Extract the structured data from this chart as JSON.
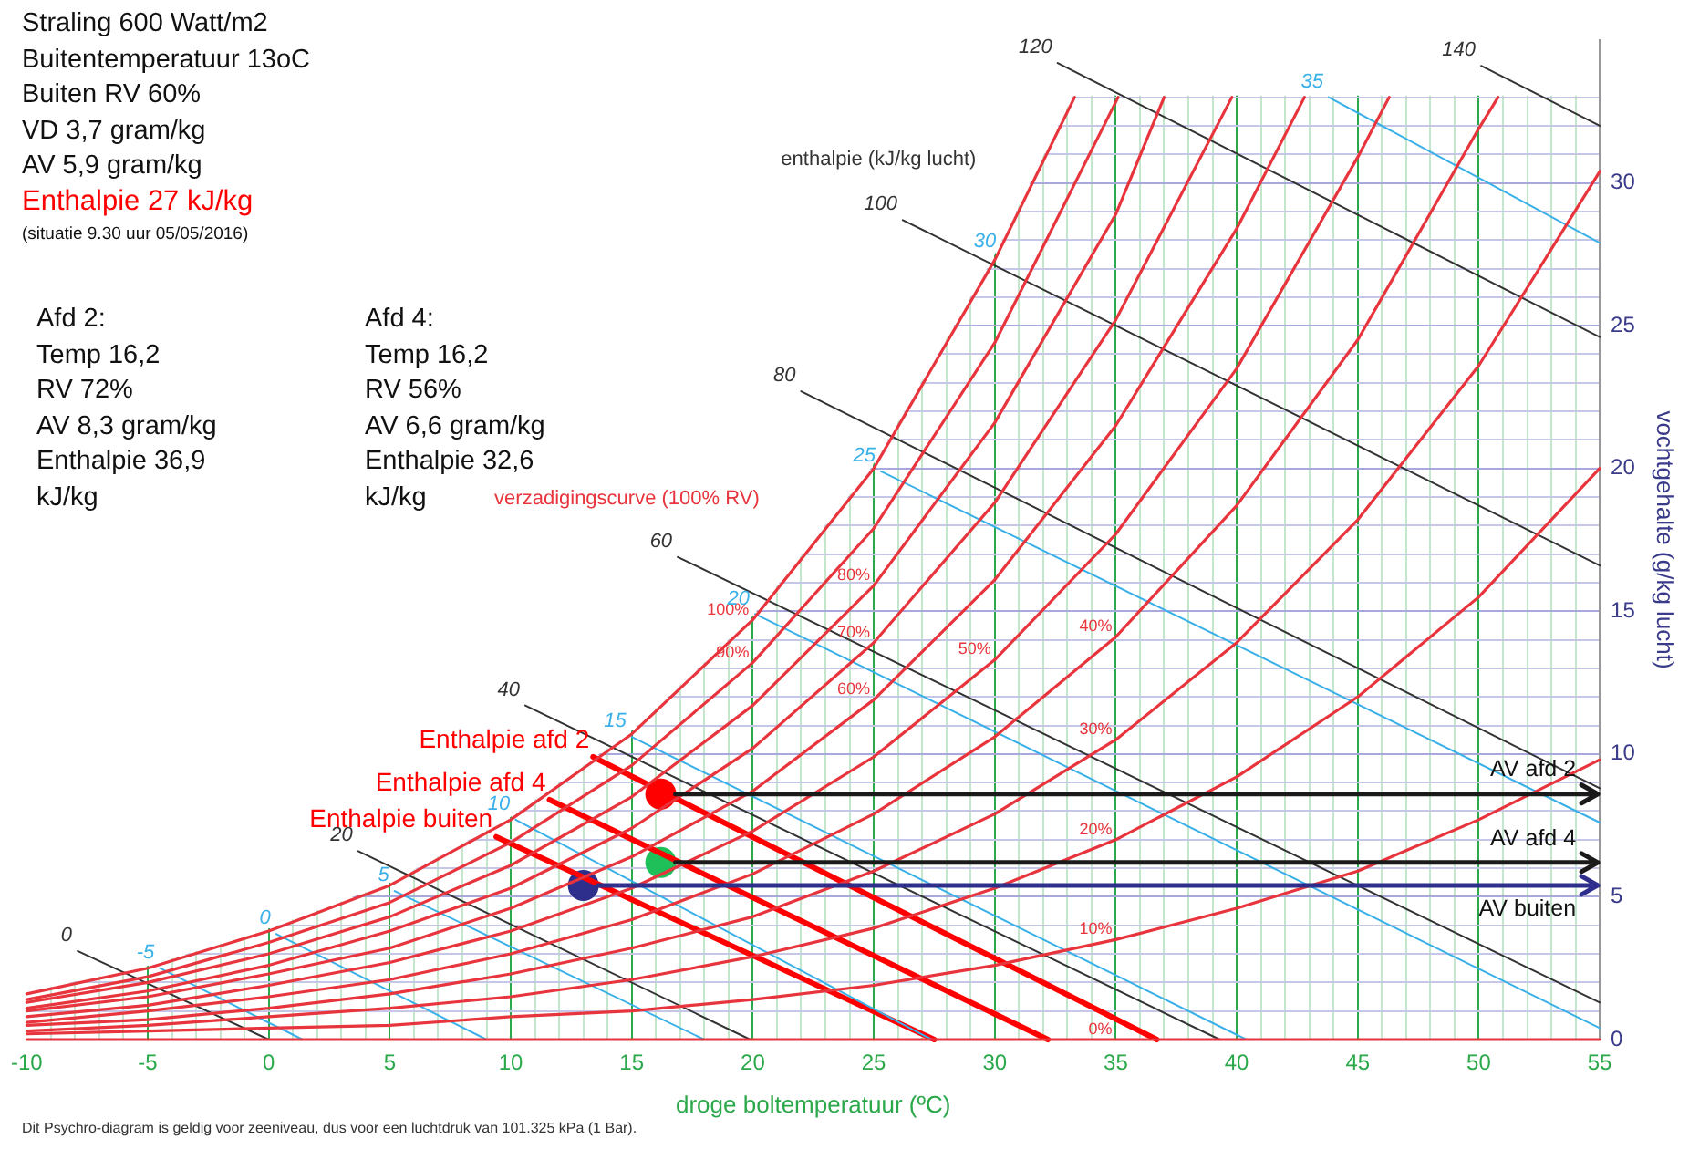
{
  "chart_data": {
    "type": "line",
    "xlabel": "droge boltemperatuur (ºC)",
    "ylabel": "vochtgehalte (g/kg lucht)",
    "xlim": [
      -10,
      55
    ],
    "ylim": [
      0,
      35
    ],
    "xticks": [
      -10,
      {
        "value": -9,
        "label": null
      },
      {
        "value": -8,
        "label": null
      },
      {
        "value": -7,
        "label": null
      },
      {
        "value": -6,
        "label": null
      },
      -5,
      {
        "value": -4,
        "label": null
      },
      {
        "value": -3,
        "label": null
      },
      {
        "value": -2,
        "label": null
      },
      {
        "value": -1,
        "label": null
      },
      0,
      {
        "value": 1,
        "label": null
      },
      {
        "value": 2,
        "label": null
      },
      {
        "value": 3,
        "label": null
      },
      {
        "value": 4,
        "label": null
      },
      5,
      {
        "value": 6,
        "label": null
      },
      {
        "value": 7,
        "label": null
      },
      {
        "value": 8,
        "label": null
      },
      {
        "value": 9,
        "label": null
      },
      10,
      {
        "value": 11,
        "label": null
      },
      {
        "value": 12,
        "label": null
      },
      {
        "value": 13,
        "label": null
      },
      {
        "value": 14,
        "label": null
      },
      15,
      {
        "value": 16,
        "label": null
      },
      {
        "value": 17,
        "label": null
      },
      {
        "value": 18,
        "label": null
      },
      {
        "value": 19,
        "label": null
      },
      20,
      {
        "value": 21,
        "label": null
      },
      {
        "value": 22,
        "label": null
      },
      {
        "value": 23,
        "label": null
      },
      {
        "value": 24,
        "label": null
      },
      25,
      {
        "value": 26,
        "label": null
      },
      {
        "value": 27,
        "label": null
      },
      {
        "value": 28,
        "label": null
      },
      {
        "value": 29,
        "label": null
      },
      30,
      {
        "value": 31,
        "label": null
      },
      {
        "value": 32,
        "label": null
      },
      {
        "value": 33,
        "label": null
      },
      {
        "value": 34,
        "label": null
      },
      35,
      {
        "value": 36,
        "label": null
      },
      {
        "value": 37,
        "label": null
      },
      {
        "value": 38,
        "label": null
      },
      {
        "value": 39,
        "label": null
      },
      40,
      {
        "value": 41,
        "label": null
      },
      {
        "value": 42,
        "label": null
      },
      {
        "value": 43,
        "label": null
      },
      {
        "value": 44,
        "label": null
      },
      45,
      {
        "value": 46,
        "label": null
      },
      {
        "value": 47,
        "label": null
      },
      {
        "value": 48,
        "label": null
      },
      {
        "value": 49,
        "label": null
      },
      50,
      {
        "value": 51,
        "label": null
      },
      {
        "value": 52,
        "label": null
      },
      {
        "value": 53,
        "label": null
      },
      {
        "value": 54,
        "label": null
      },
      55
    ],
    "yticks": [
      0,
      {
        "value": 1,
        "label": null
      },
      {
        "value": 2,
        "label": null
      },
      {
        "value": 3,
        "label": null
      },
      {
        "value": 4,
        "label": null
      },
      5,
      {
        "value": 6,
        "label": null
      },
      {
        "value": 7,
        "label": null
      },
      {
        "value": 8,
        "label": null
      },
      {
        "value": 9,
        "label": null
      },
      10,
      {
        "value": 11,
        "label": null
      },
      {
        "value": 12,
        "label": null
      },
      {
        "value": 13,
        "label": null
      },
      {
        "value": 14,
        "label": null
      },
      15,
      {
        "value": 16,
        "label": null
      },
      {
        "value": 17,
        "label": null
      },
      {
        "value": 18,
        "label": null
      },
      {
        "value": 19,
        "label": null
      },
      20,
      {
        "value": 21,
        "label": null
      },
      {
        "value": 22,
        "label": null
      },
      {
        "value": 23,
        "label": null
      },
      {
        "value": 24,
        "label": null
      },
      25,
      {
        "value": 26,
        "label": null
      },
      {
        "value": 27,
        "label": null
      },
      {
        "value": 28,
        "label": null
      },
      {
        "value": 29,
        "label": null
      },
      30,
      {
        "value": 31,
        "label": null
      },
      {
        "value": 32,
        "label": null
      },
      {
        "value": 33,
        "label": null
      }
    ],
    "grid": true,
    "annotations": [
      "Straling 600 Watt/m2\nBuitentemperatuur 13oC\nBuiten RV 60%\nVD  3,7  gram/kg\nAV 5,9 gram/kg",
      "Enthalpie  27 kJ/kg",
      "(situatie 9.30 uur  05/05/2016)",
      "Afd 2:\nTemp 16,2\nRV 72%\nAV 8,3 gram/kg\nEnthalpie 36,9\nkJ/kg",
      "Afd 4:\nTemp 16,2\nRV 56%\nAV 6,6 gram/kg\nEnthalpie 32,6\nkJ/kg",
      "Dit Psychro-diagram is geldig voor zeeniveau, dus voor een luchtdruk van 101.325 kPa (1 Bar).",
      "enthalpie (kJ/kg lucht)",
      "verzadigingscurve (100% RV)",
      "30",
      "AV afd 2",
      "AV afd 4",
      "AV buiten"
    ],
    "series": [
      {
        "name": "100%",
        "color": "#e8343c",
        "x": [
          -10,
          -5,
          0,
          5,
          10,
          15,
          20,
          25,
          30,
          33.3
        ],
        "values": [
          1.6,
          2.5,
          3.8,
          5.4,
          7.7,
          10.7,
          14.7,
          20.0,
          27.3,
          33
        ]
      },
      {
        "name": "90%",
        "color": "#e8343c",
        "x": [
          -10,
          -5,
          0,
          5,
          10,
          15,
          20,
          25,
          30,
          35.1
        ],
        "values": [
          1.4,
          2.2,
          3.4,
          4.8,
          6.9,
          9.6,
          13.2,
          17.9,
          24.4,
          33
        ]
      },
      {
        "name": "80%",
        "color": "#e8343c",
        "x": [
          -10,
          -5,
          0,
          5,
          10,
          15,
          20,
          25,
          30,
          35,
          37
        ],
        "values": [
          1.3,
          2.0,
          3.0,
          4.3,
          6.1,
          8.5,
          11.7,
          15.9,
          21.6,
          28.9,
          33
        ]
      },
      {
        "name": "70%",
        "color": "#e8343c",
        "x": [
          -10,
          -5,
          0,
          5,
          10,
          15,
          20,
          25,
          30,
          35,
          39.8
        ],
        "values": [
          1.1,
          1.7,
          2.6,
          3.8,
          5.3,
          7.4,
          10.2,
          13.9,
          18.8,
          25.2,
          33
        ]
      },
      {
        "name": "60%",
        "color": "#e8343c",
        "x": [
          -10,
          -5,
          0,
          5,
          10,
          15,
          20,
          25,
          30,
          35,
          40,
          42.8
        ],
        "values": [
          1.0,
          1.5,
          2.3,
          3.2,
          4.6,
          6.4,
          8.7,
          11.9,
          16.1,
          21.5,
          28.4,
          33
        ]
      },
      {
        "name": "50%",
        "color": "#e8343c",
        "x": [
          -10,
          -5,
          0,
          5,
          10,
          15,
          20,
          25,
          30,
          35,
          40,
          45,
          46.3
        ],
        "values": [
          0.8,
          1.2,
          1.9,
          2.7,
          3.8,
          5.3,
          7.3,
          9.9,
          13.3,
          17.7,
          23.5,
          30.9,
          33
        ]
      },
      {
        "name": "40%",
        "color": "#e8343c",
        "x": [
          -10,
          -5,
          0,
          5,
          10,
          15,
          20,
          25,
          30,
          35,
          40,
          45,
          50,
          50.8
        ],
        "values": [
          0.6,
          1.0,
          1.5,
          2.1,
          3.0,
          4.2,
          5.8,
          7.9,
          10.6,
          14.1,
          18.7,
          24.5,
          31.9,
          33
        ]
      },
      {
        "name": "30%",
        "color": "#e8343c",
        "x": [
          -10,
          -5,
          0,
          5,
          10,
          15,
          20,
          25,
          30,
          35,
          40,
          45,
          50,
          55
        ],
        "values": [
          0.5,
          0.7,
          1.1,
          1.6,
          2.3,
          3.2,
          4.3,
          5.9,
          7.9,
          10.5,
          13.9,
          18.2,
          23.6,
          30.4
        ]
      },
      {
        "name": "20%",
        "color": "#e8343c",
        "x": [
          -10,
          -5,
          0,
          5,
          10,
          15,
          20,
          25,
          30,
          35,
          40,
          45,
          50,
          55
        ],
        "values": [
          0.3,
          0.5,
          0.8,
          1.1,
          1.5,
          2.1,
          2.9,
          3.9,
          5.3,
          7.0,
          9.2,
          12.0,
          15.5,
          20.0
        ]
      },
      {
        "name": "10%",
        "color": "#e8343c",
        "x": [
          -10,
          -5,
          0,
          5,
          10,
          15,
          20,
          25,
          30,
          35,
          40,
          45,
          50,
          55
        ],
        "values": [
          0.2,
          0.3,
          0.4,
          0.5,
          0.8,
          1.0,
          1.4,
          1.9,
          2.6,
          3.5,
          4.6,
          5.9,
          7.7,
          9.8
        ]
      },
      {
        "name": "0%",
        "color": "#e8343c",
        "x": [
          -10,
          -5,
          0,
          5,
          10,
          15,
          20,
          25,
          30,
          35,
          40,
          45,
          50,
          55
        ],
        "values": [
          0,
          0,
          0,
          0,
          0,
          0,
          0,
          0,
          0,
          0,
          0,
          0,
          0,
          0
        ]
      },
      {
        "name": "0",
        "color": "#333333",
        "x": [
          -7.9,
          0
        ],
        "values": [
          3.1,
          0
        ]
      },
      {
        "name": "20",
        "color": "#333333",
        "x": [
          3.7,
          19.9
        ],
        "values": [
          6.6,
          0
        ]
      },
      {
        "name": "40",
        "color": "#333333",
        "x": [
          10.6,
          39.3
        ],
        "values": [
          11.7,
          0
        ]
      },
      {
        "name": "60",
        "color": "#333333",
        "x": [
          16.9,
          55
        ],
        "values": [
          16.9,
          1.3
        ]
      },
      {
        "name": "80",
        "color": "#333333",
        "x": [
          22.0,
          55
        ],
        "values": [
          22.7,
          8.8
        ]
      },
      {
        "name": "100",
        "color": "#333333",
        "x": [
          26.2,
          55
        ],
        "values": [
          28.7,
          16.6
        ]
      },
      {
        "name": "120",
        "color": "#333333",
        "x": [
          32.6,
          55
        ],
        "values": [
          34.2,
          24.6
        ]
      },
      {
        "name": "140",
        "color": "#333333",
        "x": [
          50.1,
          55
        ],
        "values": [
          34.1,
          32.0
        ]
      },
      {
        "name": "-5",
        "color": "#3ab0e8",
        "x": [
          -4.5,
          1.4
        ],
        "values": [
          2.5,
          0
        ]
      },
      {
        "name": "0",
        "color": "#3ab0e8",
        "x": [
          0.3,
          9.0
        ],
        "values": [
          3.7,
          0
        ]
      },
      {
        "name": "5",
        "color": "#3ab0e8",
        "x": [
          5.2,
          18.0
        ],
        "values": [
          5.2,
          0
        ]
      },
      {
        "name": "10",
        "color": "#3ab0e8",
        "x": [
          10.2,
          27.4
        ],
        "values": [
          7.7,
          0
        ]
      },
      {
        "name": "15",
        "color": "#3ab0e8",
        "x": [
          15.0,
          40.4
        ],
        "values": [
          10.6,
          0
        ]
      },
      {
        "name": "20",
        "color": "#3ab0e8",
        "x": [
          20.1,
          55
        ],
        "values": [
          14.9,
          0.4
        ]
      },
      {
        "name": "25",
        "color": "#3ab0e8",
        "x": [
          25.3,
          55
        ],
        "values": [
          19.9,
          7.6
        ]
      },
      {
        "name": "35",
        "color": "#3ab0e8",
        "x": [
          43.8,
          55
        ],
        "values": [
          33,
          27.9
        ]
      },
      {
        "name": "Enthalpie afd 2",
        "color": "#ff0000",
        "x": [
          13.4,
          36.7
        ],
        "values": [
          9.9,
          0
        ]
      },
      {
        "name": "Enthalpie afd 4",
        "color": "#ff0000",
        "x": [
          11.6,
          32.2
        ],
        "values": [
          8.4,
          0
        ]
      },
      {
        "name": "Enthalpie buiten",
        "color": "#ff0000",
        "x": [
          9.4,
          27.5
        ],
        "values": [
          7.1,
          0
        ]
      },
      {
        "type": "scatter",
        "marker": "circle",
        "color": "#ff0000",
        "x": [
          16.2
        ],
        "values": [
          8.6
        ]
      },
      {
        "type": "scatter",
        "marker": "circle",
        "color": "#1fbf5a",
        "x": [
          16.2
        ],
        "values": [
          6.2
        ]
      },
      {
        "type": "scatter",
        "marker": "circle",
        "color": "#2e2e8c",
        "x": [
          13.0
        ],
        "values": [
          5.4
        ]
      }
    ]
  }
}
